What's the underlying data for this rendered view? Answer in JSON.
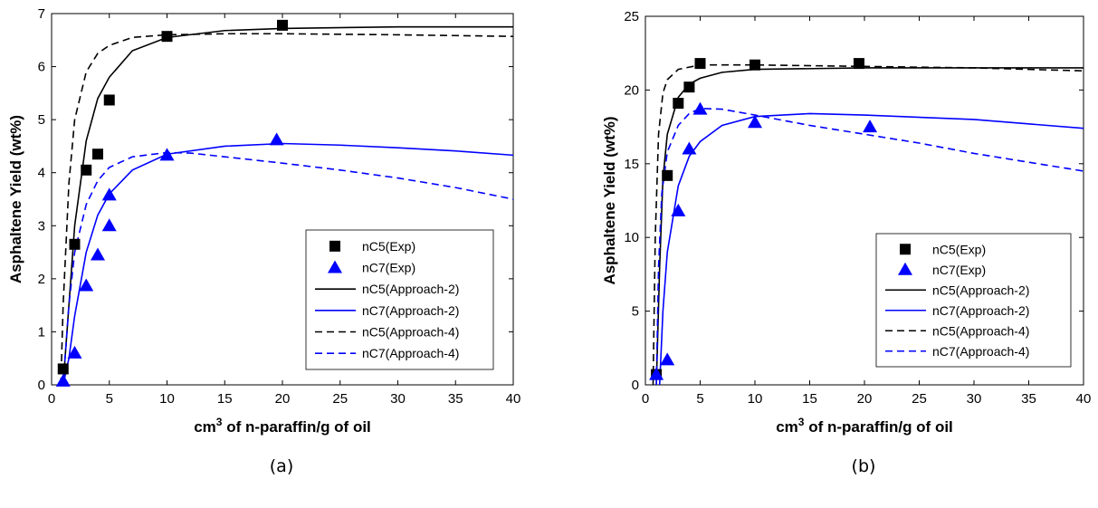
{
  "chart_data": [
    {
      "type": "line",
      "caption": "(a)",
      "y_label": "Asphaltene Yield (wt%)",
      "x_label": [
        "cm",
        "3",
        " of n-paraffin/g of oil"
      ],
      "xlim": [
        0,
        40
      ],
      "xticks": [
        0,
        5,
        10,
        15,
        20,
        25,
        30,
        35,
        40
      ],
      "ylim": [
        0,
        7
      ],
      "yticks": [
        0,
        1,
        2,
        3,
        4,
        5,
        6,
        7
      ],
      "legend": "lower right",
      "series": [
        {
          "name": "nC5(Exp)",
          "color": "#000000",
          "marker": "square",
          "line": "none",
          "x": [
            1,
            2,
            3,
            4,
            5,
            10,
            20
          ],
          "values": [
            0.3,
            2.65,
            4.05,
            4.35,
            5.37,
            6.57,
            6.78
          ]
        },
        {
          "name": "nC7(Exp)",
          "color": "#0000ff",
          "marker": "triangle",
          "line": "none",
          "x": [
            1,
            2,
            3,
            4,
            5,
            5,
            10,
            19.5
          ],
          "values": [
            0.07,
            0.6,
            1.87,
            2.45,
            3.0,
            3.58,
            4.33,
            4.62
          ]
        },
        {
          "name": "nC5(Approach-2)",
          "color": "#000000",
          "marker": "none",
          "line": "solid",
          "x": [
            1,
            1.5,
            2,
            3,
            4,
            5,
            7,
            10,
            15,
            20,
            30,
            40
          ],
          "values": [
            0,
            1.5,
            3.0,
            4.6,
            5.4,
            5.8,
            6.3,
            6.55,
            6.68,
            6.72,
            6.75,
            6.75
          ]
        },
        {
          "name": "nC7(Approach-2)",
          "color": "#0000ff",
          "marker": "none",
          "line": "solid",
          "x": [
            1,
            1.5,
            2,
            3,
            4,
            5,
            7,
            10,
            15,
            20,
            25,
            30,
            35,
            40
          ],
          "values": [
            0,
            0.5,
            1.3,
            2.5,
            3.2,
            3.6,
            4.05,
            4.35,
            4.5,
            4.55,
            4.52,
            4.47,
            4.41,
            4.33
          ]
        },
        {
          "name": "nC5(Approach-4)",
          "color": "#000000",
          "marker": "none",
          "line": "dashed",
          "x": [
            0.8,
            1,
            1.5,
            2,
            3,
            4,
            5,
            7,
            10,
            15,
            20,
            30,
            40
          ],
          "values": [
            0,
            1.5,
            3.8,
            5.0,
            5.9,
            6.25,
            6.4,
            6.55,
            6.6,
            6.62,
            6.62,
            6.6,
            6.57
          ]
        },
        {
          "name": "nC7(Approach-4)",
          "color": "#0000ff",
          "marker": "none",
          "line": "dashed",
          "x": [
            1,
            1.5,
            2,
            3,
            4,
            5,
            7,
            10,
            12,
            15,
            20,
            25,
            30,
            35,
            40
          ],
          "values": [
            0,
            1.5,
            2.5,
            3.4,
            3.85,
            4.1,
            4.3,
            4.38,
            4.37,
            4.3,
            4.18,
            4.05,
            3.9,
            3.72,
            3.5
          ]
        }
      ]
    },
    {
      "type": "line",
      "caption": "(b)",
      "y_label": "Asphaltene Yield (wt%)",
      "x_label": [
        "cm",
        "3",
        " of n-paraffin/g of oil"
      ],
      "xlim": [
        0,
        40
      ],
      "xticks": [
        0,
        5,
        10,
        15,
        20,
        25,
        30,
        35,
        40
      ],
      "ylim": [
        0,
        25
      ],
      "yticks": [
        0,
        5,
        10,
        15,
        20,
        25
      ],
      "legend": "lower right",
      "series": [
        {
          "name": "nC5(Exp)",
          "color": "#000000",
          "marker": "square",
          "line": "none",
          "x": [
            1,
            2,
            3,
            4,
            5,
            10,
            19.5
          ],
          "values": [
            0.7,
            14.2,
            19.1,
            20.2,
            21.8,
            21.7,
            21.8
          ]
        },
        {
          "name": "nC7(Exp)",
          "color": "#0000ff",
          "marker": "triangle",
          "line": "none",
          "x": [
            1,
            2,
            3,
            4,
            5,
            10,
            20.5
          ],
          "values": [
            0.7,
            1.7,
            11.8,
            16.0,
            18.7,
            17.8,
            17.5
          ]
        },
        {
          "name": "nC5(Approach-2)",
          "color": "#000000",
          "marker": "none",
          "line": "solid",
          "x": [
            1,
            1.3,
            1.6,
            2,
            3,
            4,
            5,
            7,
            10,
            20,
            40
          ],
          "values": [
            0,
            8,
            14,
            17,
            19.5,
            20.4,
            20.8,
            21.2,
            21.4,
            21.5,
            21.5
          ]
        },
        {
          "name": "nC7(Approach-2)",
          "color": "#0000ff",
          "marker": "none",
          "line": "solid",
          "x": [
            1.3,
            1.6,
            2,
            3,
            4,
            5,
            7,
            10,
            15,
            20,
            30,
            40
          ],
          "values": [
            0,
            5,
            9,
            13.5,
            15.5,
            16.5,
            17.6,
            18.2,
            18.4,
            18.3,
            18.0,
            17.4
          ]
        },
        {
          "name": "nC5(Approach-4)",
          "color": "#000000",
          "marker": "none",
          "line": "dashed",
          "x": [
            0.7,
            0.9,
            1.2,
            1.6,
            2,
            3,
            5,
            10,
            20,
            30,
            40
          ],
          "values": [
            0,
            10,
            17,
            19.8,
            20.7,
            21.4,
            21.7,
            21.7,
            21.6,
            21.5,
            21.3
          ]
        },
        {
          "name": "nC7(Approach-4)",
          "color": "#0000ff",
          "marker": "none",
          "line": "dashed",
          "x": [
            1,
            1.2,
            1.5,
            2,
            3,
            4,
            5,
            7,
            10,
            15,
            20,
            25,
            30,
            35,
            40
          ],
          "values": [
            0,
            8,
            13,
            15.8,
            17.6,
            18.4,
            18.75,
            18.7,
            18.3,
            17.6,
            17.0,
            16.4,
            15.7,
            15.1,
            14.5
          ]
        }
      ]
    }
  ]
}
